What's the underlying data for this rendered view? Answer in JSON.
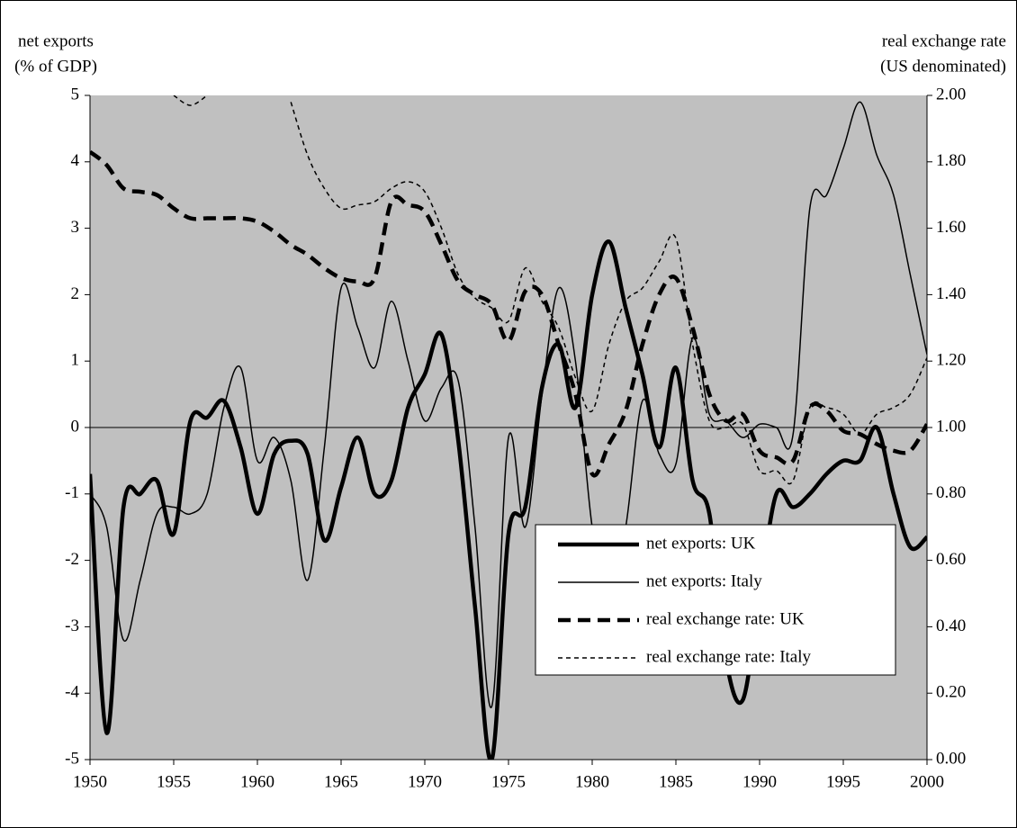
{
  "chart_data": {
    "type": "line",
    "ylabel": [
      "net exports",
      "(% of GDP)"
    ],
    "y2label": [
      "real exchange rate",
      "(US denominated)"
    ],
    "x": [
      1950,
      1951,
      1952,
      1953,
      1954,
      1955,
      1956,
      1957,
      1958,
      1959,
      1960,
      1961,
      1962,
      1963,
      1964,
      1965,
      1966,
      1967,
      1968,
      1969,
      1970,
      1971,
      1972,
      1973,
      1974,
      1975,
      1976,
      1977,
      1978,
      1979,
      1980,
      1981,
      1982,
      1983,
      1984,
      1985,
      1986,
      1987,
      1988,
      1989,
      1990,
      1991,
      1992,
      1993,
      1994,
      1995,
      1996,
      1997,
      1998,
      1999,
      2000
    ],
    "xlim": [
      1950,
      2000
    ],
    "xticks": [
      1950,
      1955,
      1960,
      1965,
      1970,
      1975,
      1980,
      1985,
      1990,
      1995,
      2000
    ],
    "ylim": [
      -5,
      5
    ],
    "yticks": [
      -5,
      -4,
      -3,
      -2,
      -1,
      0,
      1,
      2,
      3,
      4,
      5
    ],
    "y2lim": [
      0,
      2
    ],
    "y2ticks": [
      {
        "value": 0,
        "label": "0.00"
      },
      {
        "value": 0.2,
        "label": "0.20"
      },
      {
        "value": 0.4,
        "label": "0.40"
      },
      {
        "value": 0.6,
        "label": "0.60"
      },
      {
        "value": 0.8,
        "label": "0.80"
      },
      {
        "value": 1,
        "label": "1.00"
      },
      {
        "value": 1.2,
        "label": "1.20"
      },
      {
        "value": 1.4,
        "label": "1.40"
      },
      {
        "value": 1.6,
        "label": "1.60"
      },
      {
        "value": 1.8,
        "label": "1.80"
      },
      {
        "value": 2,
        "label": "2.00"
      }
    ],
    "background": "#c0c0c0",
    "series": [
      {
        "name": "net exports: UK",
        "color": "#000000",
        "width": 4.5,
        "dash": "none",
        "axis": "y",
        "values": [
          -0.7,
          -4.6,
          -1.2,
          -1.0,
          -0.8,
          -1.6,
          0.1,
          0.15,
          0.4,
          -0.3,
          -1.3,
          -0.4,
          -0.2,
          -0.4,
          -1.7,
          -0.9,
          -0.15,
          -1.0,
          -0.8,
          0.3,
          0.8,
          1.4,
          -0.2,
          -2.7,
          -5.0,
          -1.6,
          -1.2,
          0.6,
          1.25,
          0.3,
          2.0,
          2.8,
          1.8,
          0.8,
          -0.3,
          0.9,
          -0.8,
          -1.3,
          -3.5,
          -4.1,
          -2.5,
          -1.0,
          -1.2,
          -1.0,
          -0.7,
          -0.5,
          -0.5,
          0.0,
          -1.0,
          -1.8,
          -1.65
        ]
      },
      {
        "name": "net exports: Italy",
        "color": "#000000",
        "width": 1.5,
        "dash": "none",
        "axis": "y",
        "values": [
          -1.0,
          -1.5,
          -3.2,
          -2.3,
          -1.3,
          -1.2,
          -1.3,
          -1.0,
          0.3,
          0.9,
          -0.5,
          -0.15,
          -0.8,
          -2.3,
          -0.3,
          2.1,
          1.5,
          0.9,
          1.9,
          1.0,
          0.1,
          0.6,
          0.7,
          -1.5,
          -4.2,
          -0.15,
          -1.5,
          0.5,
          2.1,
          1.0,
          -1.5,
          -2.5,
          -1.5,
          0.4,
          -0.4,
          -0.55,
          1.35,
          0.2,
          0.1,
          -0.15,
          0.05,
          0.0,
          -0.1,
          3.3,
          3.5,
          4.2,
          4.9,
          4.1,
          3.5,
          2.3,
          1.1
        ]
      },
      {
        "name": "real exchange rate: UK",
        "color": "#000000",
        "width": 4.5,
        "dash": "14 8",
        "axis": "y2",
        "values": [
          1.83,
          1.79,
          1.72,
          1.71,
          1.7,
          1.66,
          1.63,
          1.63,
          1.63,
          1.63,
          1.62,
          1.59,
          1.55,
          1.52,
          1.48,
          1.45,
          1.44,
          1.45,
          1.68,
          1.67,
          1.65,
          1.55,
          1.44,
          1.4,
          1.37,
          1.26,
          1.41,
          1.4,
          1.25,
          1.1,
          0.86,
          0.95,
          1.05,
          1.25,
          1.4,
          1.45,
          1.3,
          1.1,
          1.02,
          1.04,
          0.93,
          0.91,
          0.9,
          1.06,
          1.05,
          0.99,
          0.98,
          0.95,
          0.93,
          0.93,
          1.01
        ]
      },
      {
        "name": "real exchange rate: Italy",
        "color": "#000000",
        "width": 1.5,
        "dash": "5 4",
        "axis": "y2",
        "values": [
          null,
          null,
          null,
          null,
          null,
          2.0,
          1.97,
          2.0,
          null,
          null,
          null,
          null,
          1.98,
          1.82,
          1.72,
          1.66,
          1.67,
          1.68,
          1.72,
          1.74,
          1.71,
          1.6,
          1.46,
          1.39,
          1.36,
          1.32,
          1.48,
          1.38,
          1.3,
          1.15,
          1.05,
          1.25,
          1.38,
          1.42,
          1.5,
          1.57,
          1.25,
          1.02,
          1.0,
          1.01,
          0.87,
          0.87,
          0.84,
          1.06,
          1.06,
          1.04,
          0.98,
          1.04,
          1.06,
          1.1,
          1.21
        ]
      }
    ]
  }
}
